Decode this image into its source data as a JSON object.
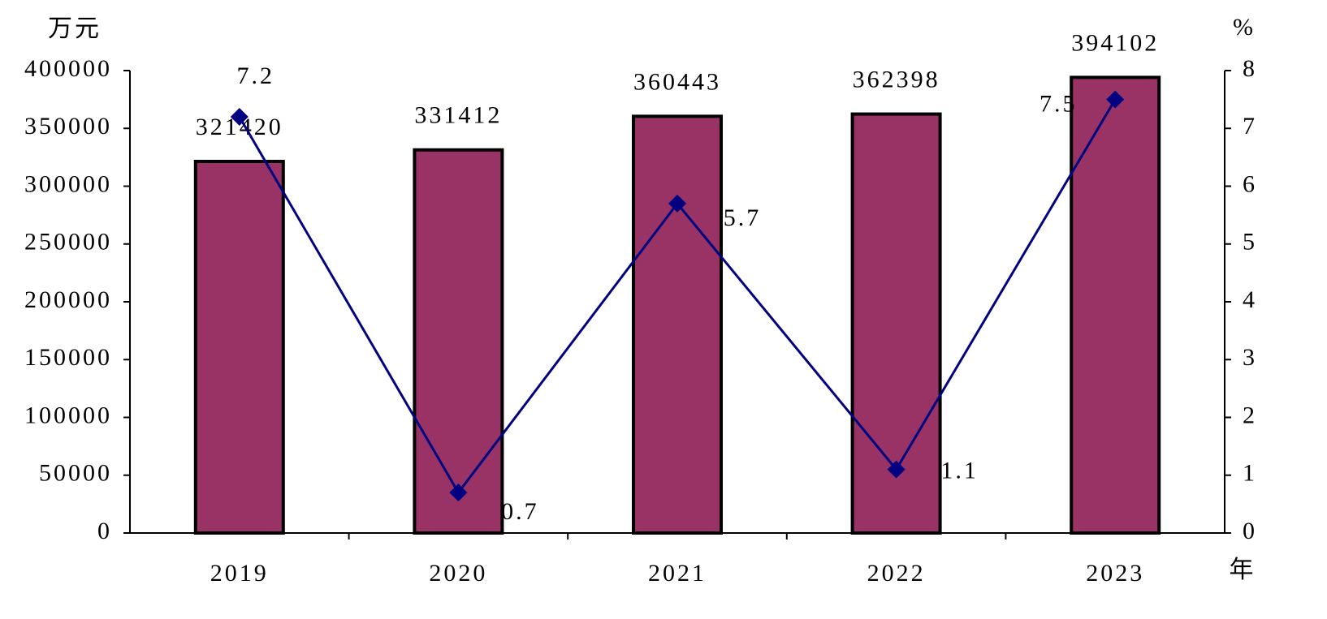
{
  "chart_data": {
    "type": "bar",
    "y_label": "万元",
    "y2_label": "%",
    "x_label": "年",
    "categories": [
      "2019",
      "2020",
      "2021",
      "2022",
      "2023"
    ],
    "series": [
      {
        "type": "bar",
        "color": "#993366",
        "values": [
          321420,
          331412,
          360443,
          362398,
          394102
        ]
      },
      {
        "type": "line",
        "axis": "y2",
        "color": "#000080",
        "values": [
          7.2,
          0.7,
          5.7,
          1.1,
          7.5
        ]
      }
    ],
    "ylim": [
      0,
      400000
    ],
    "yticks": [
      0,
      50000,
      100000,
      150000,
      200000,
      250000,
      300000,
      350000,
      400000
    ],
    "y2lim": [
      0,
      8
    ],
    "y2ticks": [
      0,
      1,
      2,
      3,
      4,
      5,
      6,
      7,
      8
    ]
  }
}
